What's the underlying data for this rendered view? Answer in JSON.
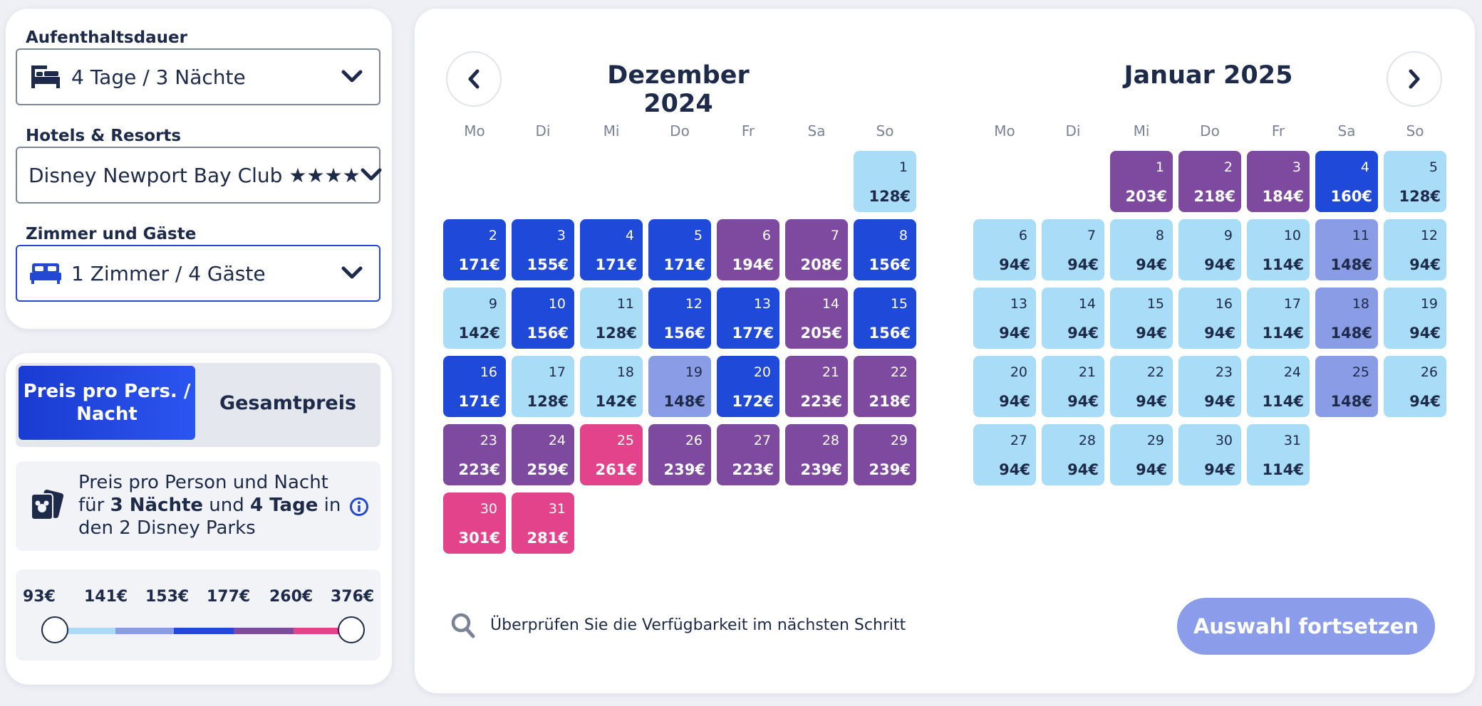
{
  "filters": {
    "stay_label": "Aufenthaltsdauer",
    "stay_value": "4 Tage / 3 Nächte",
    "hotel_label": "Hotels & Resorts",
    "hotel_value": "Disney Newport Bay Club ★★★★",
    "rooms_label": "Zimmer und Gäste",
    "rooms_value": "1 Zimmer / 4 Gäste"
  },
  "price_panel": {
    "toggle_active": "Preis pro Pers. / Nacht",
    "toggle_other": "Gesamtpreis",
    "info_prefix": "Preis pro Person und Nacht für",
    "info_nights": "3 Nächte",
    "info_and": "und",
    "info_days": "4 Tage",
    "info_suffix": "in den 2 Disney Parks",
    "range_labels": [
      "93€",
      "141€",
      "153€",
      "177€",
      "260€",
      "376€"
    ],
    "range_colors": [
      "#a9dcf7",
      "#8a9ce6",
      "#1f49d8",
      "#7e4aa0",
      "#e2438a"
    ]
  },
  "calendar": {
    "weekdays": [
      "Mo",
      "Di",
      "Mi",
      "Do",
      "Fr",
      "Sa",
      "So"
    ],
    "months": [
      {
        "title": "Dezember 2024",
        "start_offset": 6,
        "days": [
          {
            "d": "1",
            "p": "128€",
            "c": "light"
          },
          {
            "d": "2",
            "p": "171€",
            "c": "blue"
          },
          {
            "d": "3",
            "p": "155€",
            "c": "blue"
          },
          {
            "d": "4",
            "p": "171€",
            "c": "blue"
          },
          {
            "d": "5",
            "p": "171€",
            "c": "blue"
          },
          {
            "d": "6",
            "p": "194€",
            "c": "purple"
          },
          {
            "d": "7",
            "p": "208€",
            "c": "purple"
          },
          {
            "d": "8",
            "p": "156€",
            "c": "blue"
          },
          {
            "d": "9",
            "p": "142€",
            "c": "light"
          },
          {
            "d": "10",
            "p": "156€",
            "c": "blue"
          },
          {
            "d": "11",
            "p": "128€",
            "c": "light"
          },
          {
            "d": "12",
            "p": "156€",
            "c": "blue"
          },
          {
            "d": "13",
            "p": "177€",
            "c": "blue"
          },
          {
            "d": "14",
            "p": "205€",
            "c": "purple"
          },
          {
            "d": "15",
            "p": "156€",
            "c": "blue"
          },
          {
            "d": "16",
            "p": "171€",
            "c": "blue"
          },
          {
            "d": "17",
            "p": "128€",
            "c": "light"
          },
          {
            "d": "18",
            "p": "142€",
            "c": "light"
          },
          {
            "d": "19",
            "p": "148€",
            "c": "mid"
          },
          {
            "d": "20",
            "p": "172€",
            "c": "blue"
          },
          {
            "d": "21",
            "p": "223€",
            "c": "purple"
          },
          {
            "d": "22",
            "p": "218€",
            "c": "purple"
          },
          {
            "d": "23",
            "p": "223€",
            "c": "purple"
          },
          {
            "d": "24",
            "p": "259€",
            "c": "purple"
          },
          {
            "d": "25",
            "p": "261€",
            "c": "pink"
          },
          {
            "d": "26",
            "p": "239€",
            "c": "purple"
          },
          {
            "d": "27",
            "p": "223€",
            "c": "purple"
          },
          {
            "d": "28",
            "p": "239€",
            "c": "purple"
          },
          {
            "d": "29",
            "p": "239€",
            "c": "purple"
          },
          {
            "d": "30",
            "p": "301€",
            "c": "pink"
          },
          {
            "d": "31",
            "p": "281€",
            "c": "pink"
          }
        ]
      },
      {
        "title": "Januar 2025",
        "start_offset": 2,
        "days": [
          {
            "d": "1",
            "p": "203€",
            "c": "purple"
          },
          {
            "d": "2",
            "p": "218€",
            "c": "purple"
          },
          {
            "d": "3",
            "p": "184€",
            "c": "purple"
          },
          {
            "d": "4",
            "p": "160€",
            "c": "blue"
          },
          {
            "d": "5",
            "p": "128€",
            "c": "light"
          },
          {
            "d": "6",
            "p": "94€",
            "c": "light"
          },
          {
            "d": "7",
            "p": "94€",
            "c": "light"
          },
          {
            "d": "8",
            "p": "94€",
            "c": "light"
          },
          {
            "d": "9",
            "p": "94€",
            "c": "light"
          },
          {
            "d": "10",
            "p": "114€",
            "c": "light"
          },
          {
            "d": "11",
            "p": "148€",
            "c": "mid"
          },
          {
            "d": "12",
            "p": "94€",
            "c": "light"
          },
          {
            "d": "13",
            "p": "94€",
            "c": "light"
          },
          {
            "d": "14",
            "p": "94€",
            "c": "light"
          },
          {
            "d": "15",
            "p": "94€",
            "c": "light"
          },
          {
            "d": "16",
            "p": "94€",
            "c": "light"
          },
          {
            "d": "17",
            "p": "114€",
            "c": "light"
          },
          {
            "d": "18",
            "p": "148€",
            "c": "mid"
          },
          {
            "d": "19",
            "p": "94€",
            "c": "light"
          },
          {
            "d": "20",
            "p": "94€",
            "c": "light"
          },
          {
            "d": "21",
            "p": "94€",
            "c": "light"
          },
          {
            "d": "22",
            "p": "94€",
            "c": "light"
          },
          {
            "d": "23",
            "p": "94€",
            "c": "light"
          },
          {
            "d": "24",
            "p": "114€",
            "c": "light"
          },
          {
            "d": "25",
            "p": "148€",
            "c": "mid"
          },
          {
            "d": "26",
            "p": "94€",
            "c": "light"
          },
          {
            "d": "27",
            "p": "94€",
            "c": "light"
          },
          {
            "d": "28",
            "p": "94€",
            "c": "light"
          },
          {
            "d": "29",
            "p": "94€",
            "c": "light"
          },
          {
            "d": "30",
            "p": "94€",
            "c": "light"
          },
          {
            "d": "31",
            "p": "114€",
            "c": "light"
          }
        ]
      }
    ]
  },
  "footer": {
    "note": "Überprüfen Sie die Verfügbarkeit im nächsten Schritt",
    "cta": "Auswahl fortsetzen"
  }
}
